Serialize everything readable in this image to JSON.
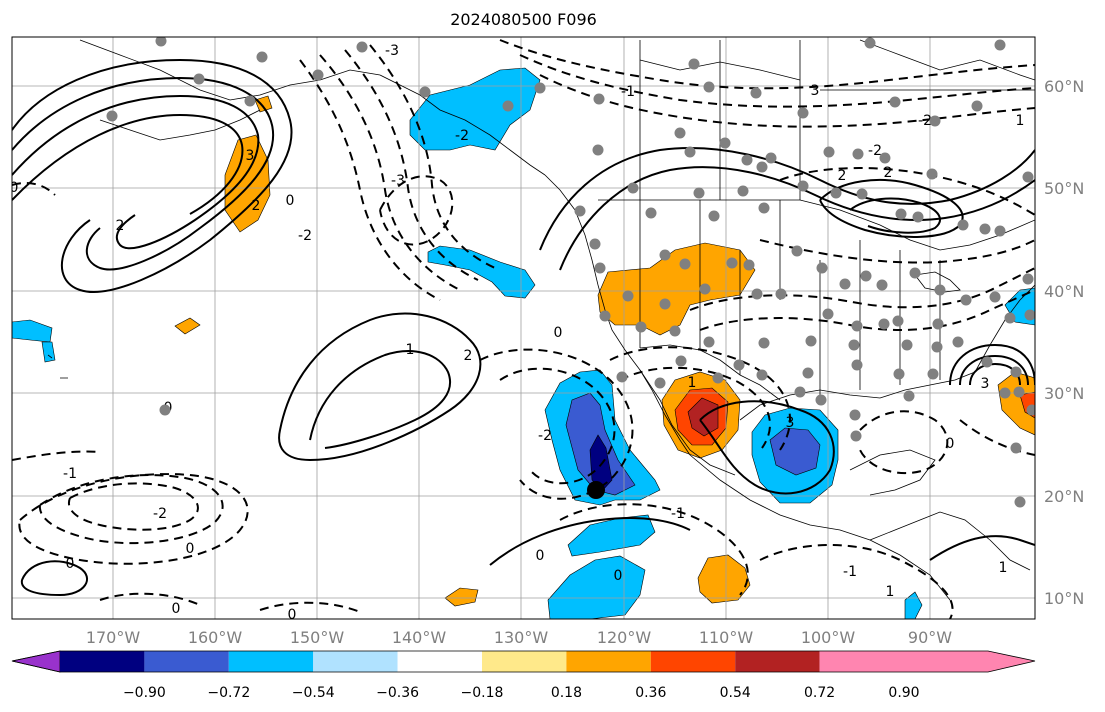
{
  "title": "2024080500 F096",
  "map": {
    "lon_labels": [
      "170°W",
      "160°W",
      "150°W",
      "140°W",
      "130°W",
      "120°W",
      "110°W",
      "100°W",
      "90°W"
    ],
    "lat_labels": [
      "60°N",
      "50°N",
      "40°N",
      "30°N",
      "20°N",
      "10°N"
    ],
    "contour_labels": [
      "-3",
      "-2",
      "-1",
      "0",
      "1",
      "2",
      "3"
    ],
    "grid_color": "#a0a0a0",
    "land_outline_color": "#000000",
    "station_marker_color": "#808080",
    "cyclone_marker_color": "#000000"
  },
  "colorbar": {
    "colors": [
      "#9932cc",
      "#000080",
      "#3a5bd1",
      "#00bfff",
      "#b0e2ff",
      "#ffffff",
      "#ffe98a",
      "#ffa500",
      "#ff4500",
      "#b22222",
      "#ff85b0"
    ],
    "tick_labels": [
      "−0.90",
      "−0.72",
      "−0.54",
      "−0.36",
      "−0.18",
      "0.18",
      "0.36",
      "0.54",
      "0.72",
      "0.90"
    ]
  }
}
